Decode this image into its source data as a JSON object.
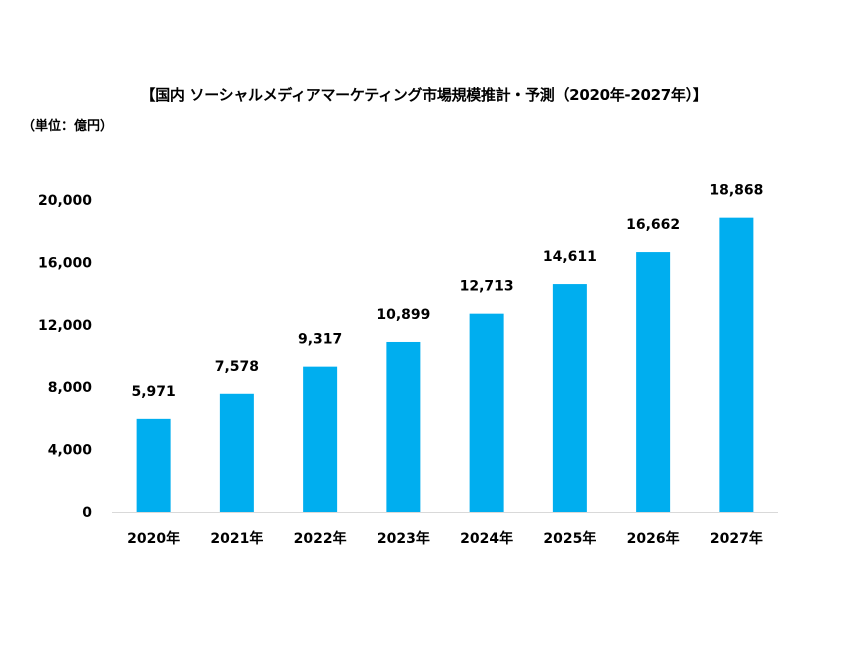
{
  "chart_data": {
    "type": "bar",
    "title": "【国内 ソーシャルメディアマーケティング市場規模推計・予測（2020年-2027年）】",
    "unit_label": "（単位：億円）",
    "categories": [
      "2020年",
      "2021年",
      "2022年",
      "2023年",
      "2024年",
      "2025年",
      "2026年",
      "2027年"
    ],
    "values": [
      5971,
      7578,
      9317,
      10899,
      12713,
      14611,
      16662,
      18868
    ],
    "data_labels": [
      "5,971",
      "7,578",
      "9,317",
      "10,899",
      "12,713",
      "14,611",
      "16,662",
      "18,868"
    ],
    "y_ticks": [
      0,
      4000,
      8000,
      12000,
      16000,
      20000
    ],
    "y_tick_labels": [
      "0",
      "4,000",
      "8,000",
      "12,000",
      "16,000",
      "20,000"
    ],
    "ylim": [
      0,
      20000
    ],
    "grid": false,
    "legend": "none",
    "bar_color": "#00aeef",
    "axis_color": "#d9d9d9"
  }
}
